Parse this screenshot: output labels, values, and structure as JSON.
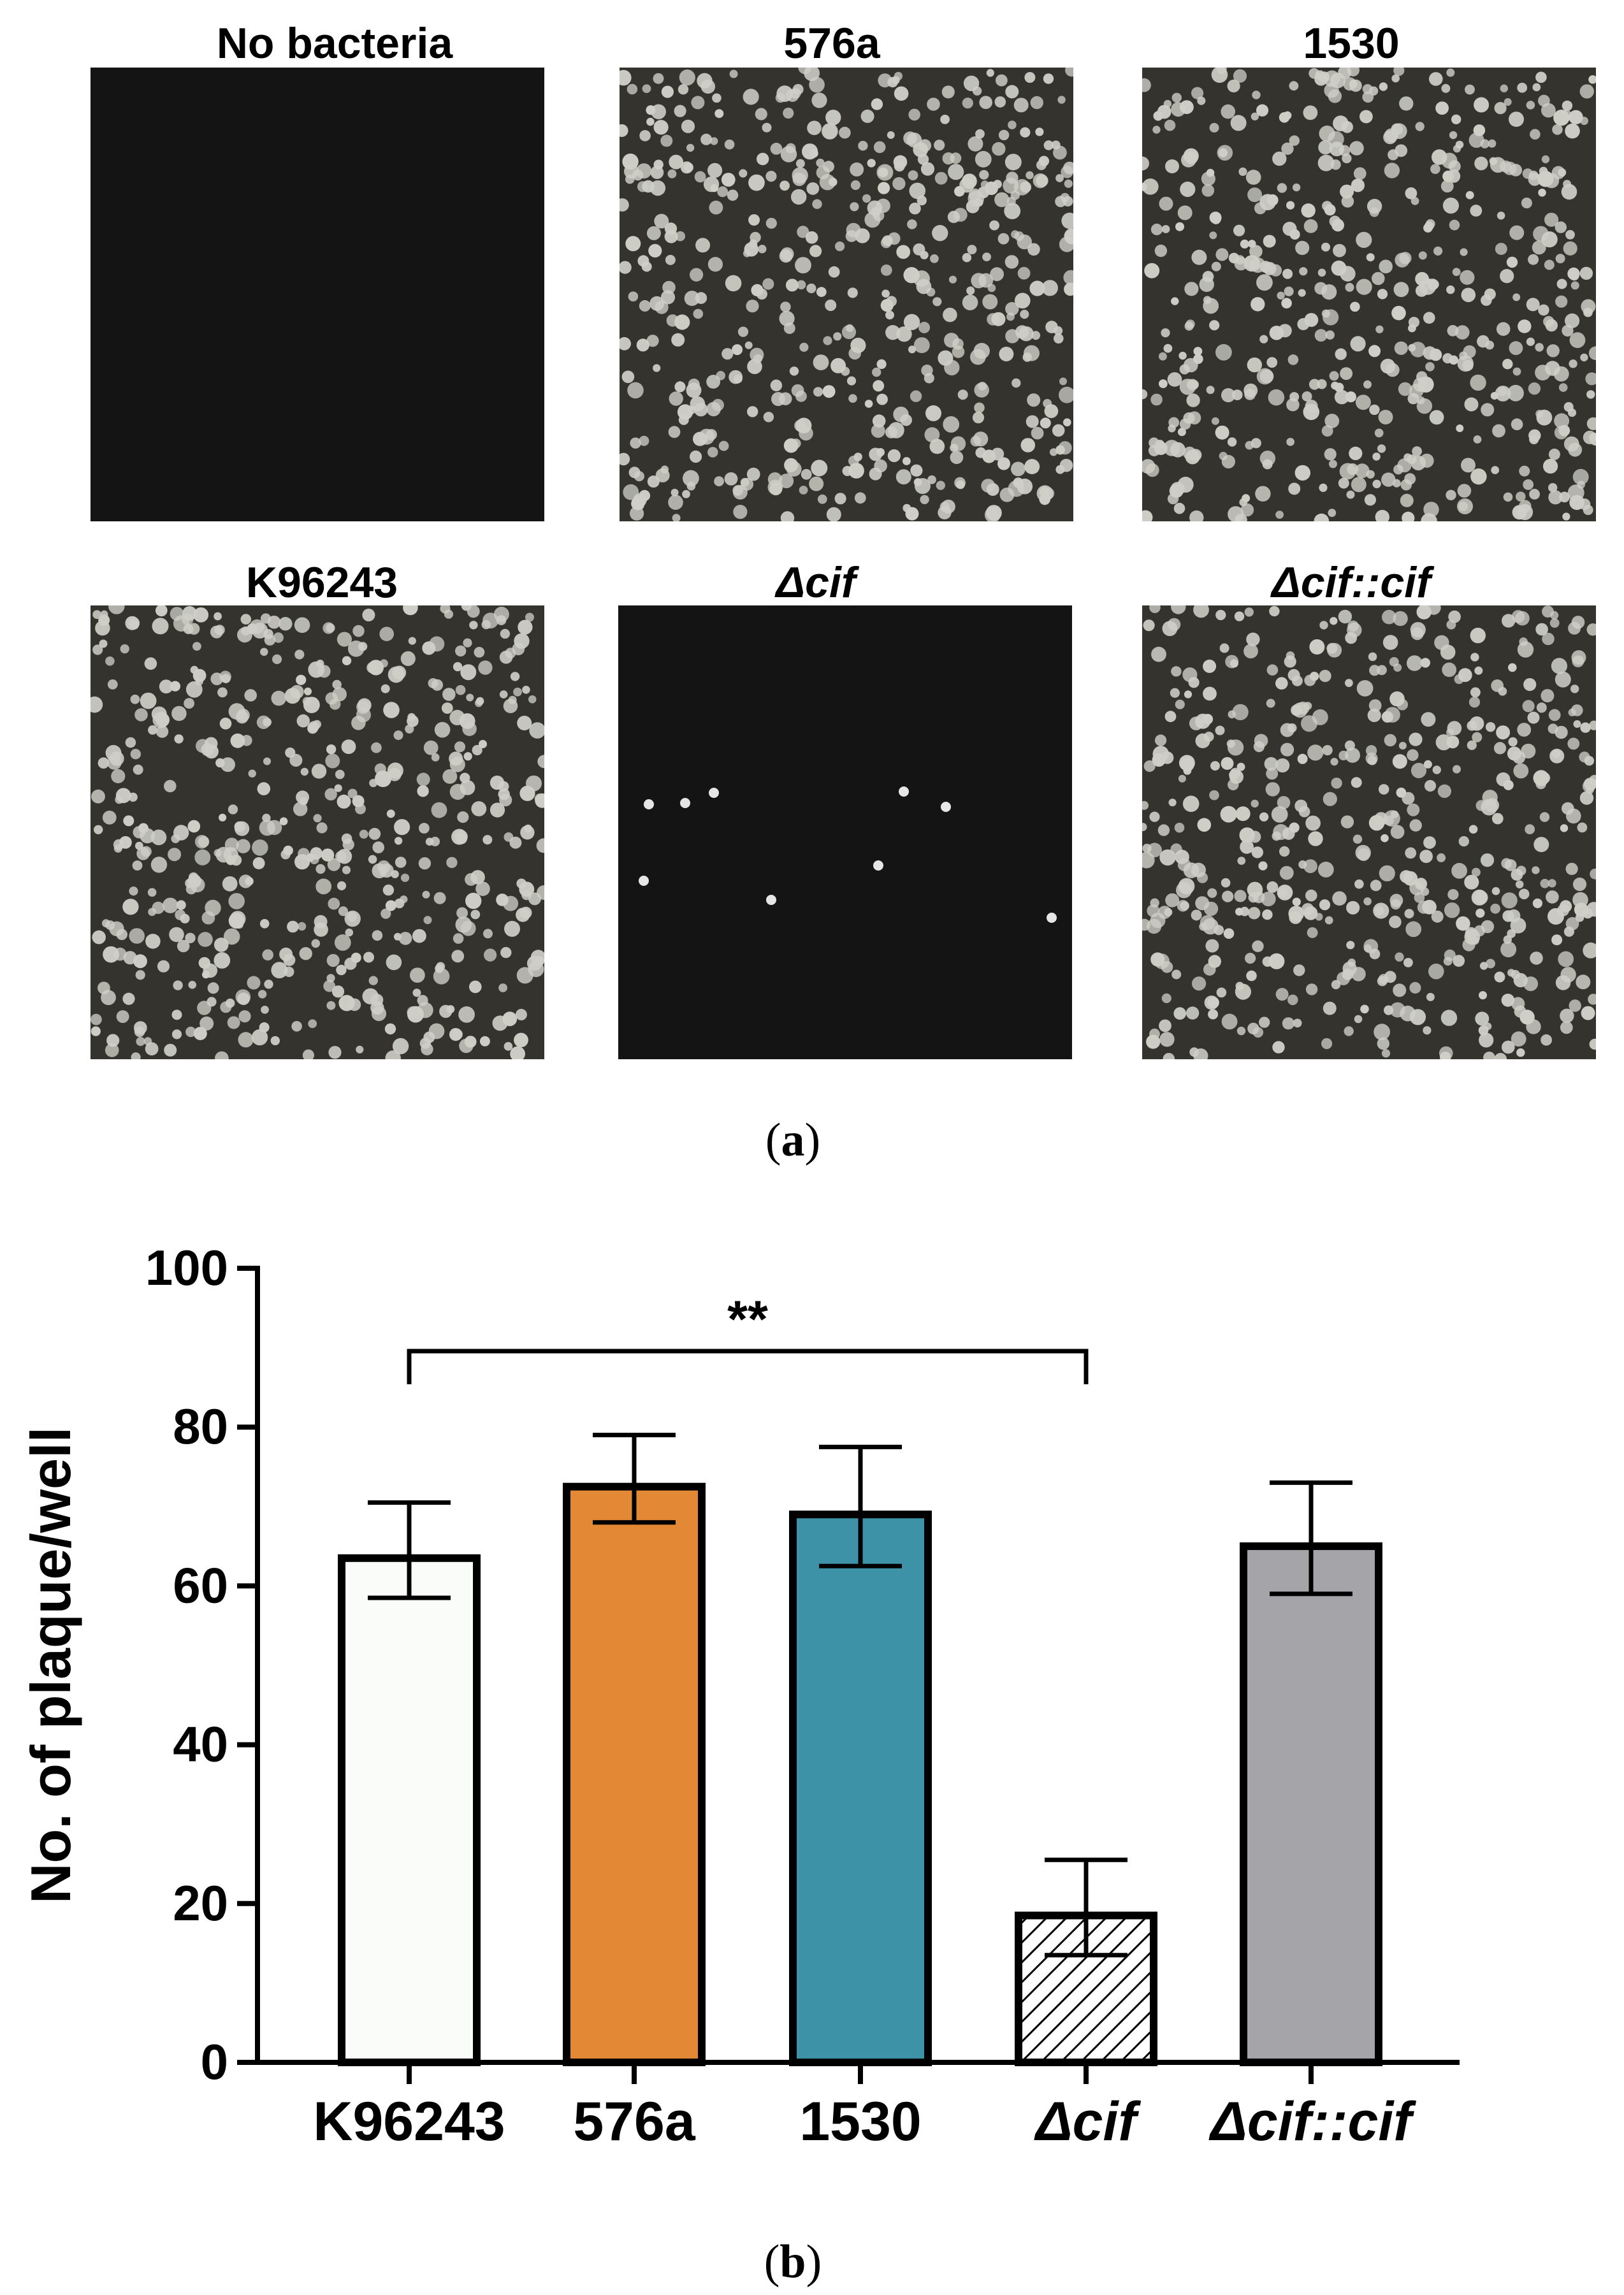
{
  "panel_a": {
    "label": "a",
    "images": [
      {
        "title": "No bacteria",
        "italic": false,
        "plaques": "none"
      },
      {
        "title": "576a",
        "italic": false,
        "plaques": "many"
      },
      {
        "title": "1530",
        "italic": false,
        "plaques": "many"
      },
      {
        "title": "K96243",
        "italic": false,
        "plaques": "many"
      },
      {
        "title": "Δcif",
        "italic": true,
        "plaques": "few"
      },
      {
        "title": "Δcif::cif",
        "italic": true,
        "plaques": "many"
      }
    ]
  },
  "panel_b": {
    "label": "b"
  },
  "chart_data": {
    "type": "bar",
    "categories": [
      "K96243",
      "576a",
      "1530",
      "Δcif",
      "Δcif::cif"
    ],
    "category_italic": [
      false,
      false,
      false,
      true,
      true
    ],
    "values": [
      63.5,
      72.5,
      69,
      18.5,
      65
    ],
    "error_upper": [
      70.5,
      79,
      77.5,
      25.5,
      73
    ],
    "error_lower": [
      58.5,
      68,
      62.5,
      13.5,
      59
    ],
    "bar_colors": [
      "#fafcfa",
      "#e38835",
      "#3d92a8",
      "hatched",
      "#a5a5a9"
    ],
    "ylabel": "No. of plaque/well",
    "xlabel": "",
    "ylim": [
      0,
      100
    ],
    "yticks": [
      0,
      20,
      40,
      60,
      80,
      100
    ],
    "significance": {
      "from": "K96243",
      "to": "Δcif",
      "label": "**"
    },
    "grid": false
  }
}
